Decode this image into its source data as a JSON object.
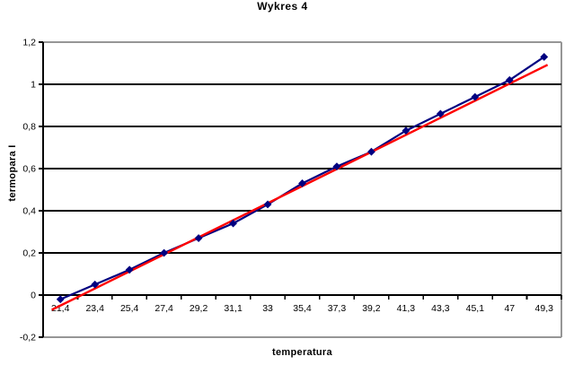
{
  "chart_data": {
    "type": "line",
    "title": "Wykres 4",
    "xlabel": "temperatura",
    "ylabel": "termopara I",
    "categories": [
      "21,4",
      "23,4",
      "25,4",
      "27,4",
      "29,2",
      "31,1",
      "33",
      "35,4",
      "37,3",
      "39,2",
      "41,3",
      "43,3",
      "45,1",
      "47",
      "49,3"
    ],
    "series": [
      {
        "name": "termopara I",
        "marker": "diamond",
        "color": "#000080",
        "values": [
          -0.02,
          0.05,
          0.12,
          0.2,
          0.27,
          0.34,
          0.43,
          0.53,
          0.61,
          0.68,
          0.78,
          0.86,
          0.94,
          1.02,
          1.13
        ]
      }
    ],
    "trendline": {
      "type": "linear",
      "color": "#ff0000",
      "slope_per_category": 0.081,
      "intercept": -0.05,
      "start_index": -0.25,
      "end_index": 14.1
    },
    "y_axis": {
      "min": -0.2,
      "max": 1.2,
      "step": 0.2,
      "tick_labels": [
        "-0,2",
        "0",
        "0,2",
        "0,4",
        "0,6",
        "0,8",
        "1",
        "1,2"
      ]
    },
    "x_axis": {
      "type": "category",
      "ticks_between_categories": true
    },
    "grid": "horizontal",
    "legend": "none",
    "colors": {
      "gridline": "#000000",
      "axis": "#000000",
      "plot_border": "#969696",
      "background": "#ffffff",
      "text": "#000000"
    }
  }
}
